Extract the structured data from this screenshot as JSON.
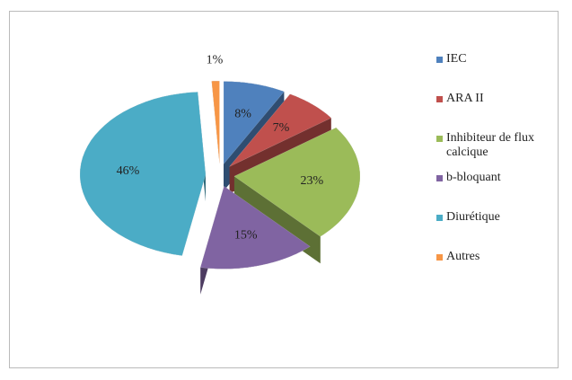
{
  "chart_data": {
    "type": "pie",
    "categories": [
      "IEC",
      "ARA II",
      "Inhibiteur de flux calcique",
      "b-bloquant",
      "Diurétique",
      "Autres"
    ],
    "values": [
      8,
      7,
      23,
      15,
      46,
      1
    ],
    "value_labels": [
      "8%",
      "7%",
      "23%",
      "15%",
      "46%",
      "1%"
    ],
    "colors": [
      "#4f81bd",
      "#c0504d",
      "#9bbb59",
      "#8064a2",
      "#4bacc6",
      "#f79646"
    ],
    "legend": "right"
  }
}
